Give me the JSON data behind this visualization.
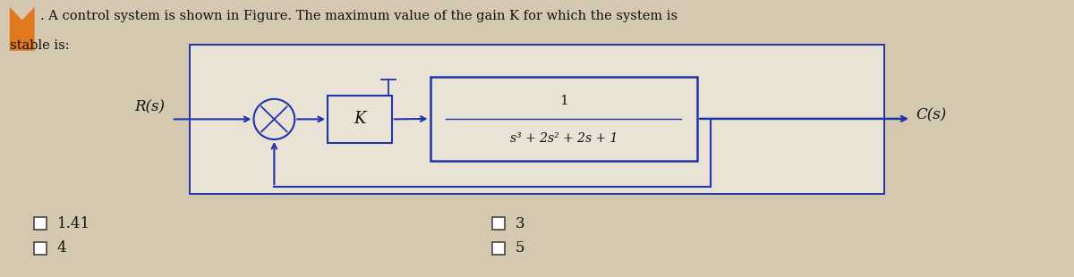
{
  "title_line1": ". A control system is shown in Figure. The maximum value of the gain K for which the system is",
  "title_line2": "stable is:",
  "title_fontsize": 10.5,
  "bg_color": "#d4c9b0",
  "inner_bg": "#e8e3d5",
  "box_fill": "#e8e3d5",
  "line_color": "#2233aa",
  "text_color": "#111111",
  "R_label": "R(s)",
  "C_label": "C(s)",
  "K_label": "K",
  "tf_num": "1",
  "tf_den": "s³ + 2s² + 2s + 1",
  "options": [
    "1.41",
    "4",
    "3",
    "5"
  ]
}
